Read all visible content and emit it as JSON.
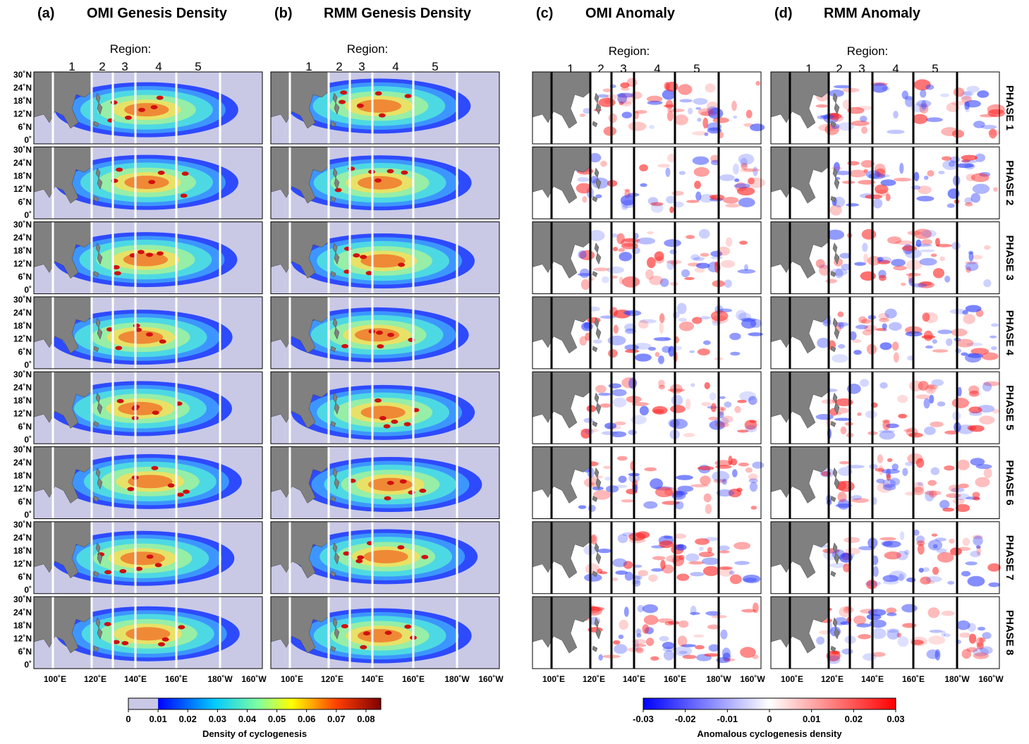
{
  "panels": [
    {
      "label": "(a)",
      "title": "OMI Genesis Density"
    },
    {
      "label": "(b)",
      "title": "RMM Genesis Density"
    },
    {
      "label": "(c)",
      "title": "OMI Anomaly"
    },
    {
      "label": "(d)",
      "title": "RMM Anomaly"
    }
  ],
  "region_label": "Region:",
  "regions": [
    "1",
    "2",
    "3",
    "4",
    "5"
  ],
  "lat_ticks": [
    "30˚N",
    "24˚N",
    "18˚N",
    "12˚N",
    "6˚N",
    "0˚"
  ],
  "lon_ticks": [
    "100˚E",
    "120˚E",
    "140˚E",
    "160˚E",
    "180˚W",
    "160˚W"
  ],
  "phases": [
    "PHASE 1",
    "PHASE 2",
    "PHASE 3",
    "PHASE 4",
    "PHASE 5",
    "PHASE 6",
    "PHASE 7",
    "PHASE 8"
  ],
  "colorbars": [
    {
      "ticks": [
        0,
        0.01,
        0.02,
        0.03,
        0.04,
        0.05,
        0.06,
        0.07,
        0.08
      ],
      "label": "Density of cyclogenesis"
    },
    {
      "ticks": [
        -0.03,
        -0.02,
        -0.01,
        0,
        0.01,
        0.02,
        0.03
      ],
      "label": "Anomalous cyclogenesis density"
    }
  ]
}
